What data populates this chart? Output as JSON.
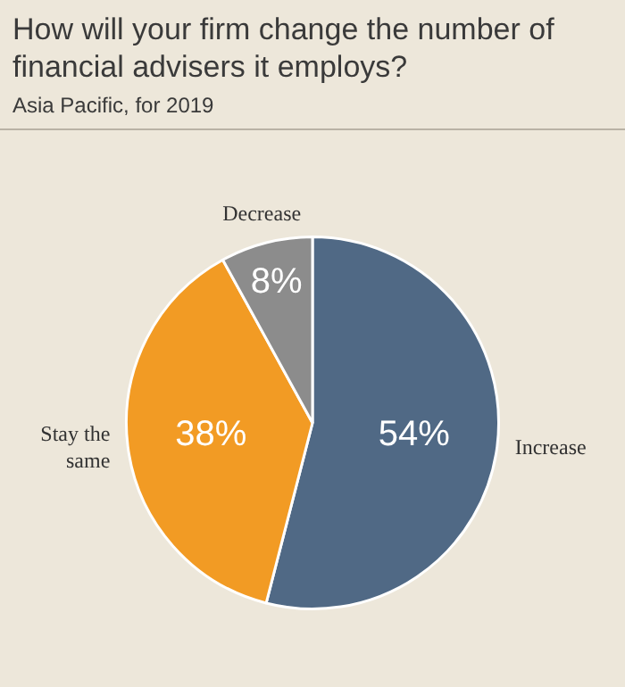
{
  "chart_data": {
    "type": "pie",
    "title": "How will your firm change the number of financial advisers it employs?",
    "subtitle": "Asia Pacific, for 2019",
    "categories": [
      "Increase",
      "Stay the same",
      "Decrease"
    ],
    "values": [
      54,
      38,
      8
    ],
    "colors": [
      "#506985",
      "#f29b24",
      "#8c8c8c"
    ],
    "value_labels": [
      "54%",
      "38%",
      "8%"
    ],
    "legend": false
  }
}
